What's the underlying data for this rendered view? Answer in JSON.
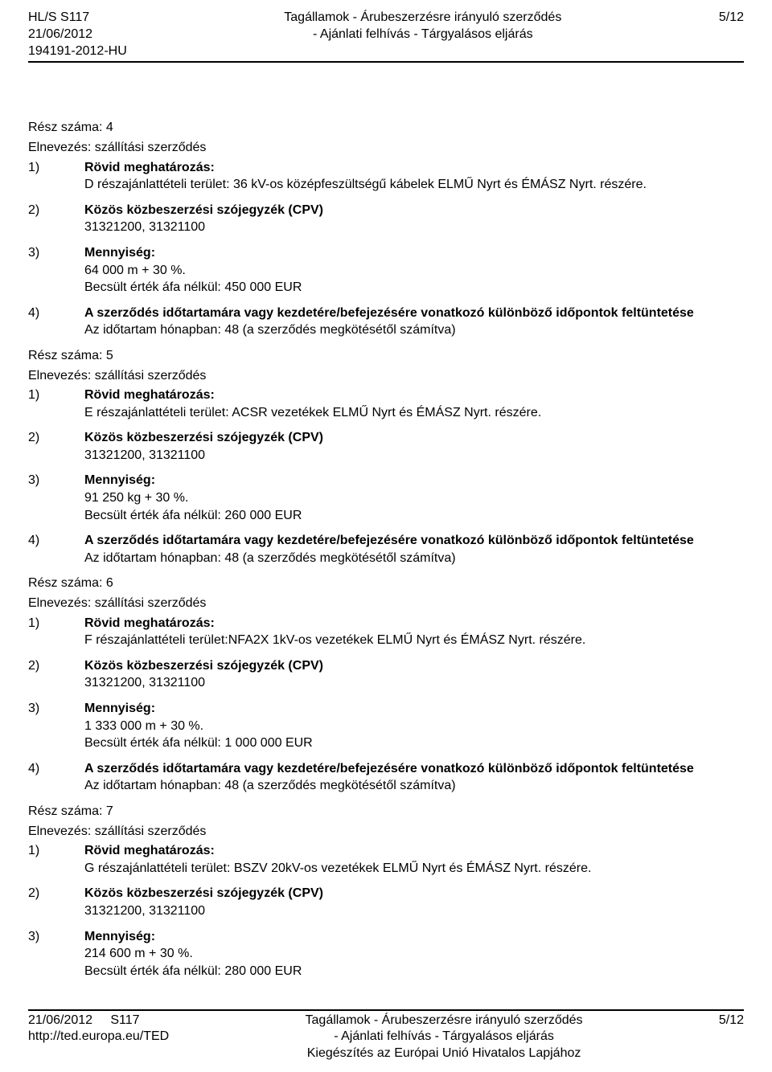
{
  "header": {
    "left1": "HL/S S117",
    "left2": "21/06/2012",
    "left3": "194191-2012-HU",
    "center1": "Tagállamok - Árubeszerzésre irányuló szerződés",
    "center2": "- Ajánlati felhívás - Tárgyalásos eljárás",
    "right": "5/12"
  },
  "labels": {
    "resz_szama": "Rész száma:",
    "elnevezes": "Elnevezés: szállítási szerződés",
    "n1": "1)",
    "n2": "2)",
    "n3": "3)",
    "n4": "4)",
    "rovid": "Rövid meghatározás:",
    "cpv": "Közös közbeszerzési szójegyzék (CPV)",
    "cpv_val": "31321200, 31321100",
    "mennyiseg": "Mennyiség:",
    "idotartam_h": "A szerződés időtartamára vagy kezdetére/befejezésére vonatkozó különböző időpontok feltüntetése",
    "idotartam_b": "Az időtartam hónapban: 48 (a szerződés megkötésétől számítva)"
  },
  "parts": [
    {
      "num": "4",
      "desc": "D részajánlattételi terület: 36 kV-os középfeszültségű kábelek ELMŰ Nyrt és ÉMÁSZ Nyrt. részére.",
      "qty": "64 000 m + 30 %.",
      "est": "Becsült érték áfa nélkül: 450 000 EUR"
    },
    {
      "num": "5",
      "desc": "E részajánlattételi terület: ACSR vezetékek ELMŰ Nyrt és ÉMÁSZ Nyrt. részére.",
      "qty": "91 250 kg + 30 %.",
      "est": "Becsült érték áfa nélkül: 260 000 EUR"
    },
    {
      "num": "6",
      "desc": "F részajánlattételi terület:NFA2X 1kV-os vezetékek ELMŰ Nyrt és ÉMÁSZ Nyrt. részére.",
      "qty": "1 333 000 m + 30 %.",
      "est": "Becsült érték áfa nélkül: 1 000 000 EUR"
    },
    {
      "num": "7",
      "desc": "G részajánlattételi terület: BSZV 20kV-os vezetékek ELMŰ Nyrt és ÉMÁSZ Nyrt. részére.",
      "qty": "214 600 m + 30 %.",
      "est": "Becsült érték áfa nélkül: 280 000 EUR"
    }
  ],
  "footer": {
    "left1": "21/06/2012",
    "left2": "S117",
    "left3": "http://ted.europa.eu/TED",
    "center1": "Tagállamok - Árubeszerzésre irányuló szerződés",
    "center2": "- Ajánlati felhívás - Tárgyalásos eljárás",
    "center3": "Kiegészítés az Európai Unió Hivatalos Lapjához",
    "right": "5/12"
  }
}
